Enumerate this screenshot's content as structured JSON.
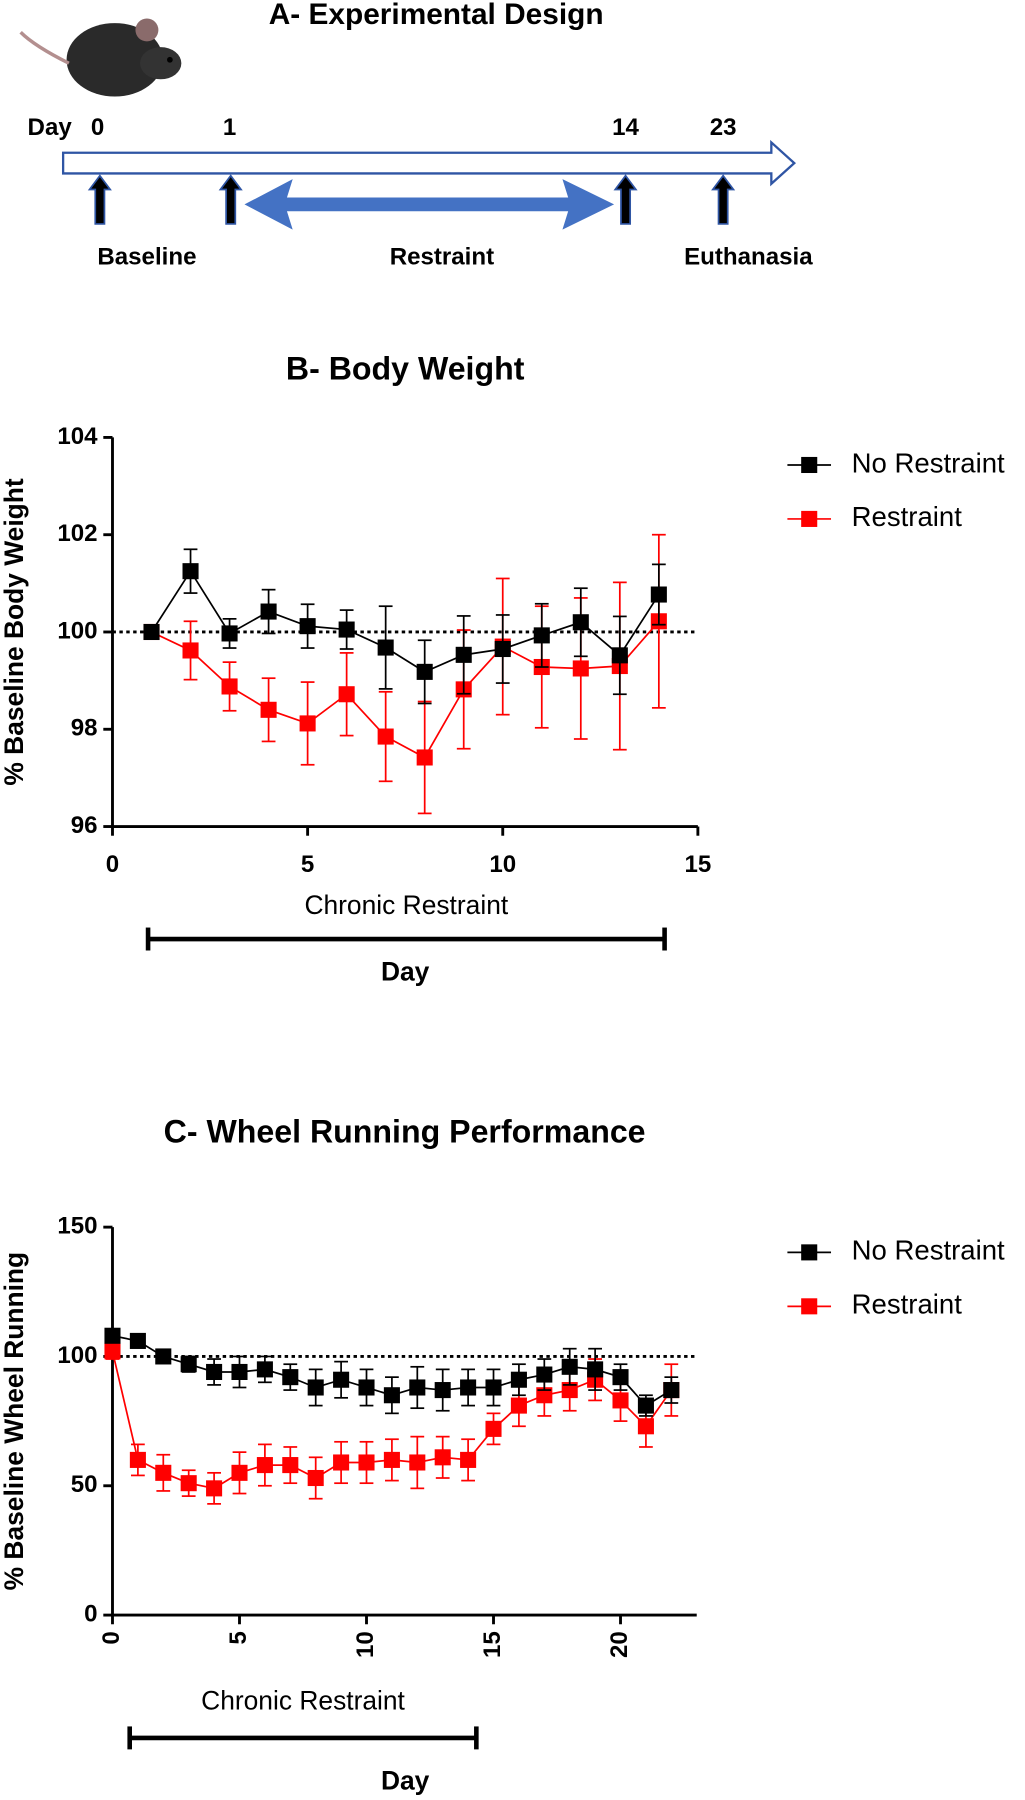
{
  "diagram": {
    "title": "A- Experimental Design",
    "day_label": "Day",
    "timepoints": [
      "0",
      "1",
      "14",
      "23"
    ],
    "phases": [
      "Baseline",
      "Restraint",
      "Euthanasia"
    ]
  },
  "chart_data": [
    {
      "type": "line",
      "title": "B- Body Weight",
      "ylabel": "% Baseline Body Weight",
      "xlabel": "Day",
      "annotation": "Chronic Restraint",
      "x": [
        1,
        2,
        3,
        4,
        5,
        6,
        7,
        8,
        9,
        10,
        11,
        12,
        13,
        14
      ],
      "series": [
        {
          "name": "No Restraint",
          "color": "#000000",
          "values": [
            100,
            101.25,
            99.97,
            100.42,
            100.12,
            100.05,
            99.68,
            99.18,
            99.53,
            99.65,
            99.93,
            100.2,
            99.52,
            100.77
          ],
          "errors": [
            0,
            0.45,
            0.3,
            0.45,
            0.45,
            0.4,
            0.85,
            0.65,
            0.8,
            0.7,
            0.65,
            0.7,
            0.8,
            0.62
          ]
        },
        {
          "name": "Restraint",
          "color": "#ff0000",
          "values": [
            100,
            99.62,
            98.88,
            98.4,
            98.12,
            98.72,
            97.85,
            97.42,
            98.82,
            99.7,
            99.28,
            99.25,
            99.3,
            100.22
          ],
          "errors": [
            0,
            0.6,
            0.5,
            0.65,
            0.85,
            0.85,
            0.92,
            1.15,
            1.22,
            1.4,
            1.25,
            1.45,
            1.72,
            1.78
          ]
        }
      ],
      "xlim": [
        0,
        15
      ],
      "ylim": [
        96,
        104
      ],
      "xticks": [
        0,
        5,
        10,
        15
      ],
      "yticks": [
        96,
        98,
        100,
        102,
        104
      ],
      "reference_line": 100,
      "legend": "right"
    },
    {
      "type": "line",
      "title": "C- Wheel Running Performance",
      "ylabel": "% Baseline Wheel Running",
      "xlabel": "Day",
      "annotation": "Chronic Restraint",
      "x": [
        0,
        1,
        2,
        3,
        4,
        5,
        6,
        7,
        8,
        9,
        10,
        11,
        12,
        13,
        14,
        15,
        16,
        17,
        18,
        19,
        20,
        21,
        22
      ],
      "series": [
        {
          "name": "No Restraint",
          "color": "#000000",
          "values": [
            108,
            106,
            100,
            97,
            94,
            94,
            95,
            92,
            88,
            91,
            88,
            85,
            88,
            87,
            88,
            88,
            91,
            93,
            96,
            95,
            92,
            81,
            87
          ],
          "errors": [
            2,
            2,
            2,
            3,
            5,
            6,
            5,
            5,
            7,
            7,
            7,
            7,
            8,
            8,
            7,
            7,
            6,
            6,
            7,
            8,
            5,
            4,
            5
          ]
        },
        {
          "name": "Restraint",
          "color": "#ff0000",
          "values": [
            102,
            60,
            55,
            51,
            49,
            55,
            58,
            58,
            53,
            59,
            59,
            60,
            59,
            61,
            60,
            72,
            81,
            85,
            87,
            91,
            83,
            73,
            87
          ],
          "errors": [
            3,
            6,
            7,
            5,
            6,
            8,
            8,
            7,
            8,
            8,
            8,
            8,
            10,
            8,
            8,
            6,
            8,
            8,
            8,
            8,
            8,
            8,
            10
          ]
        }
      ],
      "xlim": [
        0,
        23
      ],
      "ylim": [
        0,
        150
      ],
      "xticks": [
        0,
        5,
        10,
        15,
        20
      ],
      "yticks": [
        0,
        50,
        100,
        150
      ],
      "reference_line": 100,
      "legend": "right"
    }
  ]
}
